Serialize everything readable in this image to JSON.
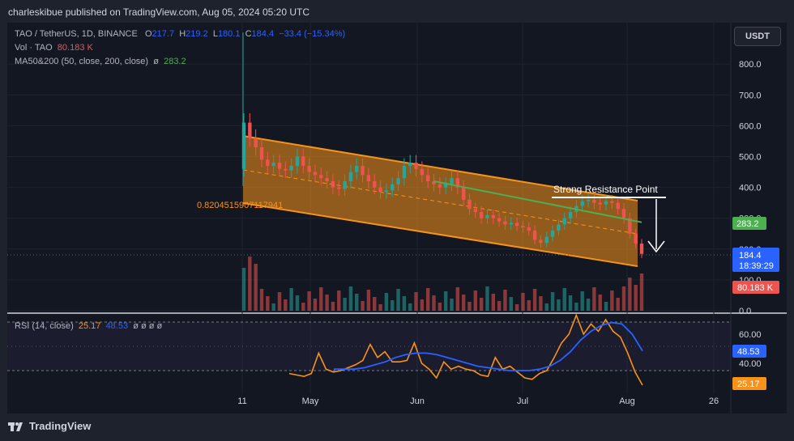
{
  "header": {
    "publisher_line": "charleskibue published on TradingView.com, Aug 05, 2024 05:20 UTC"
  },
  "legend": {
    "symbol": "TAO / TetherUS, 1D, BINANCE",
    "o_label": "O",
    "o_value": "217.7",
    "h_label": "H",
    "h_value": "219.2",
    "l_label": "L",
    "l_value": "180.1",
    "c_label": "C",
    "c_value": "184.4",
    "change": "−33.4 (−15.34%)",
    "vol_label": "Vol · TAO",
    "vol_value": "80.183 K",
    "ma_label": "MA50&200 (50, close, 200, close)",
    "ma_eye": "ø",
    "ma_value": "283.2",
    "rsi_label": "RSI (14, close)",
    "rsi_value": "25.17",
    "rsi_ma_value": "48.53",
    "rsi_extra": "ø ø ø ø"
  },
  "toolbar": {
    "currency": "USDT"
  },
  "annotations": {
    "resistance": "Strong Resistance Point",
    "fib_level": "0.8204515907117941"
  },
  "price_axis": {
    "ticks": [
      "800.0",
      "700.0",
      "600.0",
      "500.0",
      "400.0",
      "300.0",
      "200.0",
      "100.0",
      "0.0"
    ],
    "last_price": "184.4",
    "countdown": "18:39:29",
    "ma_tag": "283.2",
    "volume_tag": "80.183 K"
  },
  "rsi_axis": {
    "ticks": [
      "60.00",
      "40.00"
    ],
    "rsi_ma_tag": "48.53",
    "rsi_tag": "25.17"
  },
  "time_axis": {
    "ticks": [
      "11",
      "May",
      "Jun",
      "Jul",
      "Aug",
      "26"
    ]
  },
  "footer": {
    "brand": "TradingView"
  },
  "colors": {
    "up": "#26a69a",
    "down": "#ef5350",
    "channel": "#f7931a",
    "ma": "#4caf50",
    "rsi": "#f7931a",
    "rsi_ma": "#2962ff"
  },
  "chart_data": [
    {
      "type": "line",
      "title": "TAO / TetherUS, 1D, BINANCE",
      "x_ticks": [
        "11",
        "May",
        "Jun",
        "Jul",
        "Aug",
        "26"
      ],
      "ylim": [
        0,
        850
      ],
      "last": {
        "open": 217.7,
        "high": 219.2,
        "low": 180.1,
        "close": 184.4,
        "change": -33.4,
        "change_pct": -15.34
      },
      "series": [
        {
          "name": "MA50&200",
          "value": 283.2
        }
      ],
      "close_approx": [
        610,
        560,
        530,
        490,
        470,
        480,
        460,
        455,
        470,
        500,
        470,
        450,
        440,
        430,
        420,
        400,
        395,
        420,
        450,
        470,
        440,
        420,
        400,
        385,
        390,
        410,
        430,
        470,
        480,
        460,
        440,
        420,
        410,
        400,
        410,
        430,
        400,
        360,
        330,
        320,
        300,
        310,
        300,
        290,
        280,
        285,
        275,
        270,
        260,
        230,
        220,
        240,
        260,
        280,
        300,
        320,
        340,
        355,
        360,
        350,
        345,
        355,
        350,
        330,
        300,
        250,
        217.7,
        184.4
      ],
      "volume_last": "80.183 K"
    },
    {
      "type": "line",
      "title": "RSI (14, close)",
      "ylim": [
        20,
        75
      ],
      "series": [
        {
          "name": "RSI",
          "values": [
            33,
            32,
            31,
            33,
            47,
            36,
            34,
            35,
            37,
            39,
            42,
            53,
            44,
            48,
            41,
            41,
            42,
            54,
            40,
            36,
            30,
            41,
            36,
            38,
            36,
            35,
            32,
            31,
            44,
            36,
            38,
            34,
            30,
            29,
            33,
            35,
            44,
            54,
            60,
            73,
            60,
            67,
            62,
            70,
            62,
            58,
            47,
            34,
            25
          ]
        },
        {
          "name": "RSI MA",
          "values": [
            36,
            36,
            36,
            37,
            39,
            41,
            44,
            46,
            47,
            47,
            46,
            44,
            42,
            40,
            38,
            37,
            36,
            35,
            35,
            35,
            36,
            38,
            42,
            48,
            56,
            62,
            66,
            68,
            67,
            60,
            48.53
          ]
        }
      ]
    }
  ]
}
